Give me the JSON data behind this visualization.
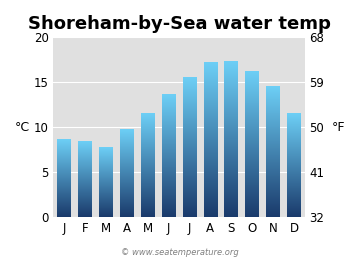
{
  "title": "Shoreham-by-Sea water temp",
  "months": [
    "J",
    "F",
    "M",
    "A",
    "M",
    "J",
    "J",
    "A",
    "S",
    "O",
    "N",
    "D"
  ],
  "values_c": [
    8.6,
    8.4,
    7.7,
    9.7,
    11.5,
    13.7,
    15.6,
    17.2,
    17.3,
    16.2,
    14.6,
    11.5
  ],
  "ylim_c": [
    0,
    20
  ],
  "yticks_c": [
    0,
    5,
    10,
    15,
    20
  ],
  "yticks_f": [
    32,
    41,
    50,
    59,
    68
  ],
  "ylabel_left": "°C",
  "ylabel_right": "°F",
  "bar_color_top": "#6dcff6",
  "bar_color_bottom": "#1a3a6b",
  "background_color": "#e0e0e0",
  "title_fontsize": 13,
  "axis_fontsize": 9,
  "tick_fontsize": 8.5,
  "watermark": "© www.seatemperature.org"
}
